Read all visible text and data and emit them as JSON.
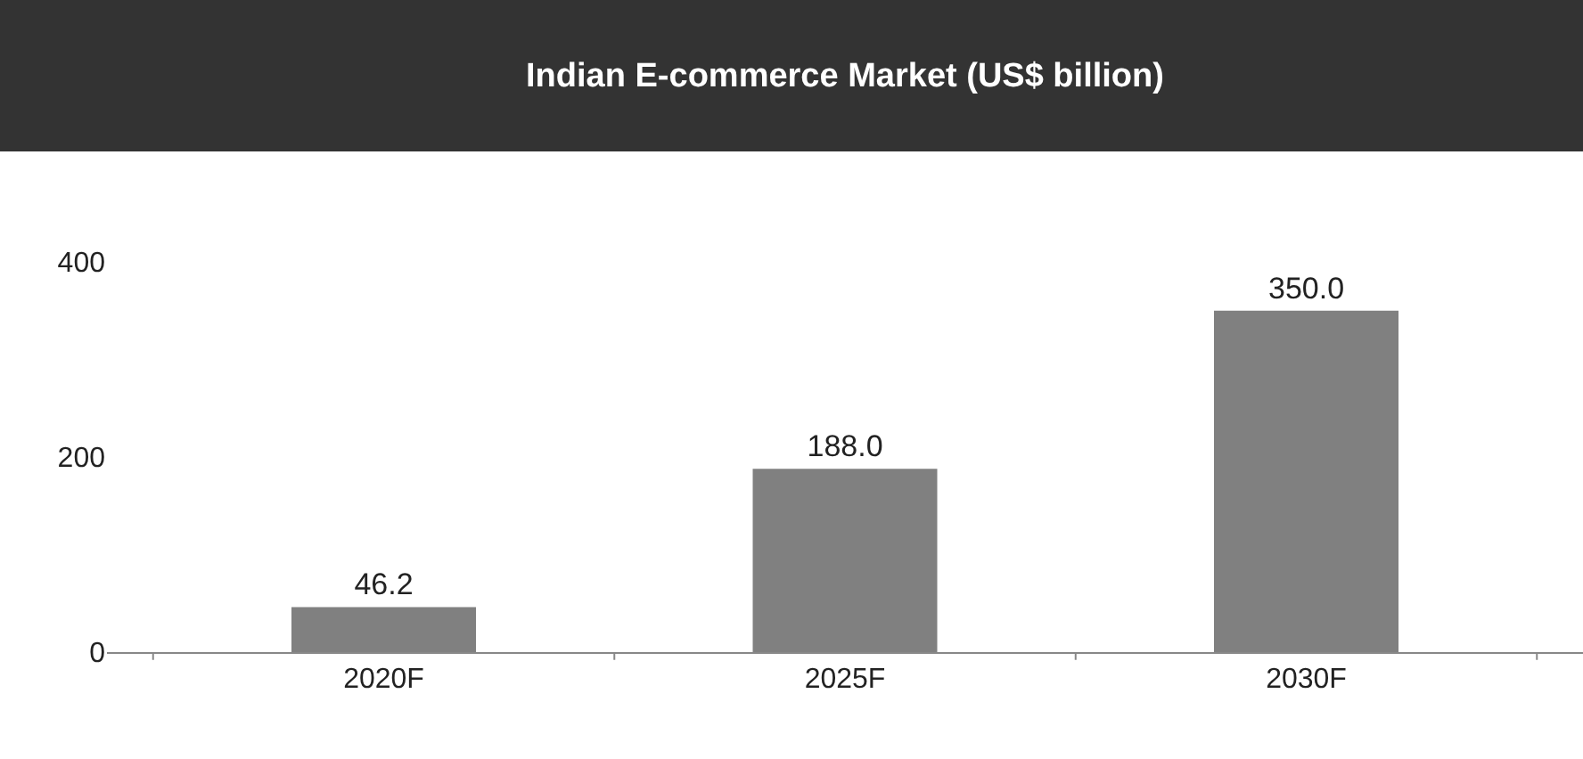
{
  "chart_data": {
    "type": "bar",
    "title": "Indian E-commerce Market (US$ billion)",
    "categories": [
      "2020F",
      "2025F",
      "2030F"
    ],
    "values": [
      46.2,
      188.0,
      350.0
    ],
    "value_labels": [
      "46.2",
      "188.0",
      "350.0"
    ],
    "color": "#808080",
    "ylim": [
      0,
      400
    ],
    "yticks": [
      0,
      200,
      400
    ]
  }
}
